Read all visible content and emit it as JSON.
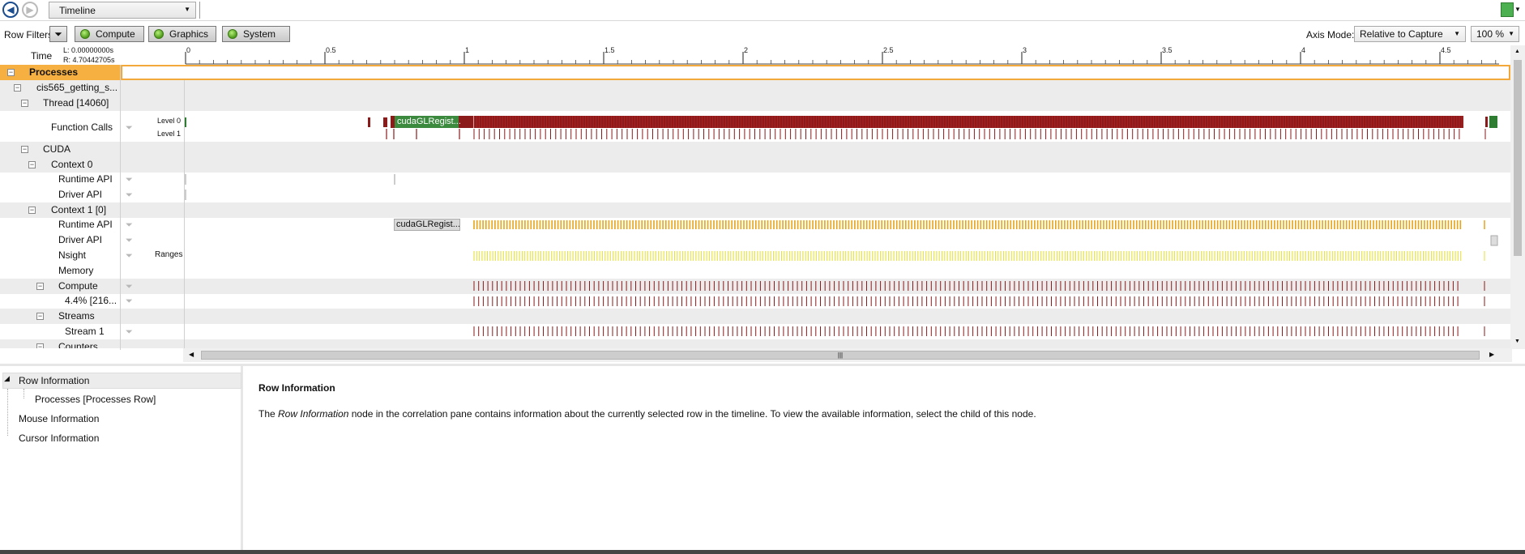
{
  "toolbar": {
    "view_select": "Timeline"
  },
  "row_filters": {
    "label": "Row Filters",
    "buttons": [
      "Compute",
      "Graphics",
      "System"
    ]
  },
  "axis": {
    "mode_label": "Axis Mode:",
    "mode_value": "Relative to Capture",
    "zoom": "100 %"
  },
  "time": {
    "label": "Time",
    "left": "L:  0.00000000s",
    "right": "R:  4.70442705s",
    "ticks": [
      "0",
      "0.5",
      "1",
      "1.5",
      "2",
      "2.5",
      "3",
      "3.5",
      "4",
      "4.5"
    ]
  },
  "rows": {
    "processes": "Processes",
    "app": "cis565_getting_s...",
    "thread": "Thread [14060]",
    "function_calls": "Function Calls",
    "level0": "Level 0",
    "level1": "Level 1",
    "cuda": "CUDA",
    "context0": "Context 0",
    "runtime_api": "Runtime API",
    "driver_api": "Driver API",
    "context1": "Context 1 [0]",
    "nsight": "Nsight",
    "ranges": "Ranges",
    "memory": "Memory",
    "compute": "Compute",
    "compute_kernel": "4.4% [216...",
    "streams": "Streams",
    "stream1": "Stream 1",
    "counters": "Counters"
  },
  "timeline_labels": {
    "func_call": "cudaGLRegist...",
    "runtime_call": "cudaGLRegist..."
  },
  "colors": {
    "function": "#8b1a1a",
    "green": "#2e7d32",
    "runtime": "#e8a317",
    "nsight": "#e6e23a",
    "kernel": "#8b1a1a",
    "accent_orange": "#f5b041"
  },
  "info": {
    "tree": [
      "Row Information",
      "Processes [Processes Row]",
      "Mouse Information",
      "Cursor Information"
    ],
    "title": "Row Information",
    "body_pre": "The ",
    "body_em": "Row Information",
    "body_post": " node in the correlation pane contains information about the currently selected row in the timeline. To view the available information, select the child of this node."
  }
}
